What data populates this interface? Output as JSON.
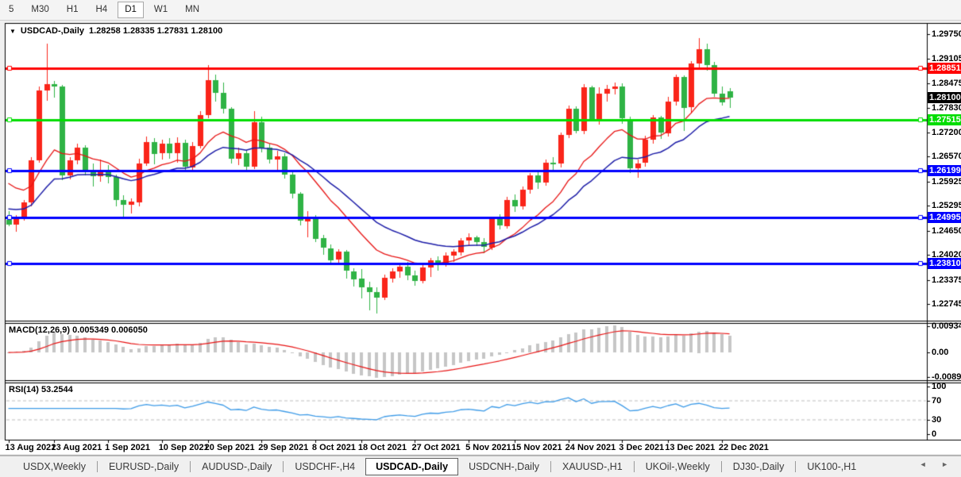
{
  "toolbar": {
    "timeframes": [
      "5",
      "M30",
      "H1",
      "H4",
      "D1",
      "W1",
      "MN"
    ],
    "active": "D1"
  },
  "window": {
    "title_symbol": "USDCAD-,Daily",
    "title_ohlc": "1.28258 1.28335 1.27831 1.28100",
    "caret": "▼"
  },
  "chart_data": {
    "type": "candlestick",
    "symbol": "USDCAD-",
    "timeframe": "Daily",
    "title": "USDCAD-,Daily",
    "ohlc_display": {
      "open": "1.28258",
      "high": "1.28335",
      "low": "1.27831",
      "close": "1.28100"
    },
    "up_color": "#fa251a",
    "down_color": "#2fb345",
    "price_range": [
      1.2234,
      1.3001
    ],
    "price_axis_ticks": [
      "1.29750",
      "1.29105",
      "1.28475",
      "1.27830",
      "1.27200",
      "1.26570",
      "1.25925",
      "1.25295",
      "1.24650",
      "1.24020",
      "1.23375",
      "1.22745"
    ],
    "hlines": [
      {
        "value": 1.28851,
        "label": "1.28851",
        "color": "#ff0000"
      },
      {
        "value": 1.27515,
        "label": "1.27515",
        "color": "#00dd00"
      },
      {
        "value": 1.26199,
        "label": "1.26199",
        "color": "#0000ff"
      },
      {
        "value": 1.24995,
        "label": "1.24995",
        "color": "#0000ff"
      },
      {
        "value": 1.2381,
        "label": "1.23810",
        "color": "#0000ff"
      }
    ],
    "current_price": {
      "value": 1.281,
      "label": "1.28100",
      "color": "#000000"
    },
    "moving_averages": [
      {
        "name": "ma-fast",
        "color": "#e81414",
        "alpha": 0.14,
        "seed": 1.2605,
        "width": 1.3
      },
      {
        "name": "ma-slow",
        "color": "#1d1da8",
        "alpha": 0.08,
        "seed": 1.2525,
        "width": 1.5
      }
    ],
    "x_labels": [
      {
        "i": 0,
        "text": "13 Aug 2021"
      },
      {
        "i": 6,
        "text": "23 Aug 2021"
      },
      {
        "i": 13,
        "text": "1 Sep 2021"
      },
      {
        "i": 20,
        "text": "10 Sep 2021"
      },
      {
        "i": 26,
        "text": "20 Sep 2021"
      },
      {
        "i": 33,
        "text": "29 Sep 2021"
      },
      {
        "i": 40,
        "text": "8 Oct 2021"
      },
      {
        "i": 46,
        "text": "18 Oct 2021"
      },
      {
        "i": 53,
        "text": "27 Oct 2021"
      },
      {
        "i": 60,
        "text": "5 Nov 2021"
      },
      {
        "i": 66,
        "text": "15 Nov 2021"
      },
      {
        "i": 73,
        "text": "24 Nov 2021"
      },
      {
        "i": 80,
        "text": "3 Dec 2021"
      },
      {
        "i": 86,
        "text": "13 Dec 2021"
      },
      {
        "i": 93,
        "text": "22 Dec 2021"
      }
    ],
    "dates": [
      "13 Aug 2021",
      "16 Aug 2021",
      "17 Aug 2021",
      "18 Aug 2021",
      "19 Aug 2021",
      "20 Aug 2021",
      "23 Aug 2021",
      "24 Aug 2021",
      "25 Aug 2021",
      "26 Aug 2021",
      "27 Aug 2021",
      "30 Aug 2021",
      "31 Aug 2021",
      "1 Sep 2021",
      "2 Sep 2021",
      "3 Sep 2021",
      "6 Sep 2021",
      "7 Sep 2021",
      "8 Sep 2021",
      "9 Sep 2021",
      "10 Sep 2021",
      "13 Sep 2021",
      "14 Sep 2021",
      "15 Sep 2021",
      "16 Sep 2021",
      "17 Sep 2021",
      "20 Sep 2021",
      "21 Sep 2021",
      "22 Sep 2021",
      "23 Sep 2021",
      "24 Sep 2021",
      "27 Sep 2021",
      "28 Sep 2021",
      "29 Sep 2021",
      "30 Sep 2021",
      "1 Oct 2021",
      "4 Oct 2021",
      "5 Oct 2021",
      "6 Oct 2021",
      "7 Oct 2021",
      "8 Oct 2021",
      "11 Oct 2021",
      "12 Oct 2021",
      "13 Oct 2021",
      "14 Oct 2021",
      "15 Oct 2021",
      "18 Oct 2021",
      "19 Oct 2021",
      "20 Oct 2021",
      "21 Oct 2021",
      "22 Oct 2021",
      "25 Oct 2021",
      "26 Oct 2021",
      "27 Oct 2021",
      "28 Oct 2021",
      "29 Oct 2021",
      "1 Nov 2021",
      "2 Nov 2021",
      "3 Nov 2021",
      "4 Nov 2021",
      "5 Nov 2021",
      "8 Nov 2021",
      "9 Nov 2021",
      "10 Nov 2021",
      "11 Nov 2021",
      "12 Nov 2021",
      "15 Nov 2021",
      "16 Nov 2021",
      "17 Nov 2021",
      "18 Nov 2021",
      "19 Nov 2021",
      "22 Nov 2021",
      "23 Nov 2021",
      "24 Nov 2021",
      "25 Nov 2021",
      "26 Nov 2021",
      "29 Nov 2021",
      "30 Nov 2021",
      "1 Dec 2021",
      "2 Dec 2021",
      "3 Dec 2021",
      "6 Dec 2021",
      "7 Dec 2021",
      "8 Dec 2021",
      "9 Dec 2021",
      "10 Dec 2021",
      "13 Dec 2021",
      "14 Dec 2021",
      "15 Dec 2021",
      "16 Dec 2021",
      "17 Dec 2021",
      "20 Dec 2021",
      "21 Dec 2021",
      "22 Dec 2021",
      "23 Dec 2021"
    ],
    "ohlc": [
      [
        1.2493,
        1.2516,
        1.2476,
        1.2481
      ],
      [
        1.2481,
        1.2505,
        1.2462,
        1.25
      ],
      [
        1.25,
        1.2545,
        1.2492,
        1.2538
      ],
      [
        1.2538,
        1.2655,
        1.2528,
        1.2647
      ],
      [
        1.2647,
        1.2838,
        1.264,
        1.2828
      ],
      [
        1.2828,
        1.2949,
        1.28,
        1.2845
      ],
      [
        1.2845,
        1.2852,
        1.2808,
        1.2838
      ],
      [
        1.2838,
        1.2842,
        1.2595,
        1.2608
      ],
      [
        1.2608,
        1.2655,
        1.2598,
        1.2648
      ],
      [
        1.2648,
        1.269,
        1.2636,
        1.268
      ],
      [
        1.268,
        1.2686,
        1.2608,
        1.262
      ],
      [
        1.262,
        1.264,
        1.258,
        1.2605
      ],
      [
        1.2605,
        1.265,
        1.2592,
        1.2622
      ],
      [
        1.2622,
        1.2635,
        1.2588,
        1.2604
      ],
      [
        1.2604,
        1.261,
        1.2528,
        1.2545
      ],
      [
        1.2545,
        1.2556,
        1.2494,
        1.2532
      ],
      [
        1.2532,
        1.2548,
        1.2508,
        1.254
      ],
      [
        1.254,
        1.2652,
        1.2528,
        1.264
      ],
      [
        1.264,
        1.2708,
        1.2632,
        1.2695
      ],
      [
        1.2695,
        1.2705,
        1.2638,
        1.2665
      ],
      [
        1.2665,
        1.27,
        1.2648,
        1.269
      ],
      [
        1.269,
        1.2705,
        1.2652,
        1.2666
      ],
      [
        1.2666,
        1.2706,
        1.264,
        1.2692
      ],
      [
        1.2692,
        1.27,
        1.2618,
        1.263
      ],
      [
        1.263,
        1.2695,
        1.2622,
        1.2685
      ],
      [
        1.2685,
        1.2775,
        1.2678,
        1.2765
      ],
      [
        1.2765,
        1.2895,
        1.2758,
        1.2855
      ],
      [
        1.2855,
        1.287,
        1.28,
        1.2822
      ],
      [
        1.2822,
        1.2848,
        1.2768,
        1.278
      ],
      [
        1.278,
        1.2785,
        1.2638,
        1.265
      ],
      [
        1.265,
        1.268,
        1.2635,
        1.2665
      ],
      [
        1.2665,
        1.2675,
        1.2618,
        1.263
      ],
      [
        1.263,
        1.2775,
        1.2625,
        1.2745
      ],
      [
        1.2745,
        1.276,
        1.2668,
        1.268
      ],
      [
        1.268,
        1.269,
        1.2638,
        1.265
      ],
      [
        1.265,
        1.2672,
        1.2618,
        1.2658
      ],
      [
        1.2658,
        1.2665,
        1.26,
        1.261
      ],
      [
        1.261,
        1.2618,
        1.2548,
        1.256
      ],
      [
        1.256,
        1.2565,
        1.2478,
        1.249
      ],
      [
        1.249,
        1.2515,
        1.2448,
        1.25
      ],
      [
        1.25,
        1.2505,
        1.2436,
        1.2445
      ],
      [
        1.2445,
        1.2455,
        1.2403,
        1.242
      ],
      [
        1.242,
        1.243,
        1.2378,
        1.239
      ],
      [
        1.239,
        1.2418,
        1.2382,
        1.241
      ],
      [
        1.241,
        1.2415,
        1.234,
        1.236
      ],
      [
        1.236,
        1.2368,
        1.232,
        1.234
      ],
      [
        1.234,
        1.2365,
        1.2288,
        1.2318
      ],
      [
        1.2318,
        1.2332,
        1.2258,
        1.2305
      ],
      [
        1.2305,
        1.2318,
        1.225,
        1.229
      ],
      [
        1.229,
        1.2352,
        1.2287,
        1.2342
      ],
      [
        1.2342,
        1.2368,
        1.233,
        1.236
      ],
      [
        1.236,
        1.238,
        1.2342,
        1.2372
      ],
      [
        1.2372,
        1.2385,
        1.2338,
        1.235
      ],
      [
        1.235,
        1.2362,
        1.2322,
        1.2335
      ],
      [
        1.2335,
        1.2378,
        1.2328,
        1.237
      ],
      [
        1.237,
        1.2395,
        1.2345,
        1.2388
      ],
      [
        1.2388,
        1.2398,
        1.236,
        1.238
      ],
      [
        1.238,
        1.2408,
        1.237,
        1.24
      ],
      [
        1.24,
        1.2418,
        1.2385,
        1.241
      ],
      [
        1.241,
        1.2445,
        1.24,
        1.244
      ],
      [
        1.244,
        1.2458,
        1.2428,
        1.2448
      ],
      [
        1.2448,
        1.2452,
        1.2425,
        1.2435
      ],
      [
        1.2435,
        1.2445,
        1.2405,
        1.2422
      ],
      [
        1.2422,
        1.25,
        1.2415,
        1.2495
      ],
      [
        1.2495,
        1.2508,
        1.2468,
        1.2478
      ],
      [
        1.2478,
        1.2552,
        1.247,
        1.2545
      ],
      [
        1.2545,
        1.2558,
        1.2512,
        1.2528
      ],
      [
        1.2528,
        1.258,
        1.252,
        1.2572
      ],
      [
        1.2572,
        1.2615,
        1.2562,
        1.2608
      ],
      [
        1.2608,
        1.2618,
        1.2572,
        1.259
      ],
      [
        1.259,
        1.265,
        1.2582,
        1.2642
      ],
      [
        1.2642,
        1.2655,
        1.2622,
        1.2638
      ],
      [
        1.2638,
        1.272,
        1.263,
        1.2713
      ],
      [
        1.2713,
        1.279,
        1.2705,
        1.2781
      ],
      [
        1.2781,
        1.2788,
        1.2718,
        1.2723
      ],
      [
        1.2723,
        1.2845,
        1.2715,
        1.2837
      ],
      [
        1.2837,
        1.284,
        1.2748,
        1.2755
      ],
      [
        1.2755,
        1.2837,
        1.274,
        1.282
      ],
      [
        1.282,
        1.2842,
        1.2798,
        1.2832
      ],
      [
        1.2832,
        1.2848,
        1.2818,
        1.2838
      ],
      [
        1.2838,
        1.2846,
        1.2742,
        1.2755
      ],
      [
        1.2755,
        1.276,
        1.2615,
        1.2628
      ],
      [
        1.2628,
        1.265,
        1.2602,
        1.264
      ],
      [
        1.264,
        1.2712,
        1.2632,
        1.27
      ],
      [
        1.27,
        1.2765,
        1.2692,
        1.2758
      ],
      [
        1.2758,
        1.2762,
        1.2702,
        1.2718
      ],
      [
        1.2718,
        1.2812,
        1.271,
        1.28
      ],
      [
        1.28,
        1.287,
        1.279,
        1.2864
      ],
      [
        1.2864,
        1.2868,
        1.2725,
        1.2784
      ],
      [
        1.2784,
        1.2905,
        1.277,
        1.2898
      ],
      [
        1.2898,
        1.2963,
        1.288,
        1.2936
      ],
      [
        1.2936,
        1.295,
        1.288,
        1.2895
      ],
      [
        1.2895,
        1.2902,
        1.2812,
        1.282
      ],
      [
        1.282,
        1.2838,
        1.2788,
        1.2798
      ],
      [
        1.28258,
        1.28335,
        1.27831,
        1.281
      ]
    ],
    "macd": {
      "label": "MACD(12,26,9) 0.005349 0.006050",
      "params": [
        12,
        26,
        9
      ],
      "value": "0.005349",
      "signal_value": "0.006050",
      "axis": [
        {
          "v": 0.009345,
          "text": "0.009345"
        },
        {
          "v": 0,
          "text": "0.00"
        },
        {
          "v": -0.008902,
          "text": "-0.008902"
        }
      ],
      "range": [
        -0.00947,
        0.01006
      ],
      "hist_color": "#c6c6c6",
      "signal_color": "#e81414"
    },
    "rsi": {
      "label": "RSI(14) 53.2544",
      "period": 14,
      "value": "53.2544",
      "axis": [
        {
          "v": 100,
          "text": "100"
        },
        {
          "v": 70,
          "text": "70"
        },
        {
          "v": 30,
          "text": "30"
        },
        {
          "v": 0,
          "text": "0"
        }
      ],
      "levels": [
        70,
        30
      ],
      "color": "#3f9ce8",
      "level_color": "#bdbdbd"
    }
  },
  "tabs": {
    "items": [
      "USDX,Weekly",
      "EURUSD-,Daily",
      "AUDUSD-,Daily",
      "USDCHF-,H4",
      "USDCAD-,Daily",
      "USDCNH-,Daily",
      "XAUUSD-,H1",
      "UKOil-,Weekly",
      "DJ30-,Daily",
      "UK100-,H1"
    ],
    "active": "USDCAD-,Daily",
    "arrows": "◄ ►"
  }
}
